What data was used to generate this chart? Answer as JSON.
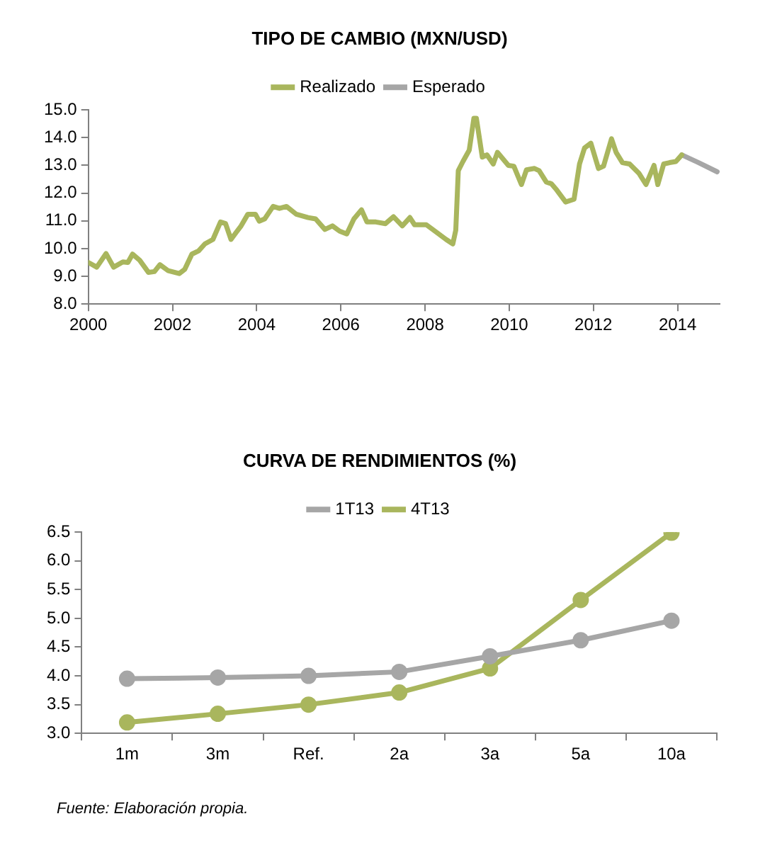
{
  "chart_data": [
    {
      "type": "line",
      "title": "TIPO DE CAMBIO (MXN/USD)",
      "legend": "top",
      "grid": false,
      "marker": "none",
      "line_style": "solid",
      "xlim": [
        2000,
        2015
      ],
      "xticks": [
        2000,
        2002,
        2004,
        2006,
        2008,
        2010,
        2012,
        2014
      ],
      "ylim": [
        8,
        15
      ],
      "yticks": [
        {
          "value": 8,
          "label": "8.0"
        },
        {
          "value": 9,
          "label": "9.0"
        },
        {
          "value": 10,
          "label": "10.0"
        },
        {
          "value": 11,
          "label": "11.0"
        },
        {
          "value": 12,
          "label": "12.0"
        },
        {
          "value": 13,
          "label": "13.0"
        },
        {
          "value": 14,
          "label": "14.0"
        },
        {
          "value": 15,
          "label": "15.0"
        }
      ],
      "series": [
        {
          "name": "Realizado",
          "color": "#a9b65d",
          "x": [
            2000.0,
            2000.2,
            2000.42,
            2000.6,
            2000.82,
            2000.94,
            2001.05,
            2001.22,
            2001.43,
            2001.57,
            2001.7,
            2001.9,
            2002.16,
            2002.29,
            2002.46,
            2002.62,
            2002.77,
            2002.96,
            2003.14,
            2003.26,
            2003.39,
            2003.51,
            2003.63,
            2003.79,
            2003.97,
            2004.06,
            2004.19,
            2004.39,
            2004.54,
            2004.71,
            2004.94,
            2005.22,
            2005.4,
            2005.62,
            2005.8,
            2005.97,
            2006.14,
            2006.31,
            2006.49,
            2006.62,
            2006.83,
            2007.06,
            2007.25,
            2007.46,
            2007.64,
            2007.75,
            2008.03,
            2008.28,
            2008.5,
            2008.66,
            2008.73,
            2008.79,
            2008.9,
            2009.05,
            2009.16,
            2009.22,
            2009.36,
            2009.47,
            2009.62,
            2009.72,
            2009.98,
            2010.11,
            2010.29,
            2010.41,
            2010.6,
            2010.71,
            2010.88,
            2011.0,
            2011.13,
            2011.34,
            2011.54,
            2011.67,
            2011.79,
            2011.94,
            2012.12,
            2012.24,
            2012.43,
            2012.54,
            2012.69,
            2012.86,
            2013.08,
            2013.25,
            2013.44,
            2013.53,
            2013.67,
            2013.81,
            2013.96,
            2014.1
          ],
          "values": [
            9.5,
            9.33,
            9.82,
            9.33,
            9.52,
            9.5,
            9.8,
            9.58,
            9.14,
            9.17,
            9.42,
            9.2,
            9.1,
            9.25,
            9.8,
            9.92,
            10.17,
            10.33,
            10.96,
            10.9,
            10.33,
            10.58,
            10.82,
            11.24,
            11.24,
            10.99,
            11.07,
            11.52,
            11.45,
            11.52,
            11.24,
            11.12,
            11.07,
            10.69,
            10.82,
            10.63,
            10.53,
            11.07,
            11.4,
            10.96,
            10.96,
            10.9,
            11.15,
            10.82,
            11.12,
            10.86,
            10.86,
            10.58,
            10.33,
            10.17,
            10.66,
            12.81,
            13.14,
            13.55,
            14.7,
            14.7,
            13.3,
            13.38,
            13.05,
            13.47,
            13.0,
            12.97,
            12.31,
            12.84,
            12.89,
            12.81,
            12.4,
            12.34,
            12.11,
            11.68,
            11.78,
            13.05,
            13.63,
            13.8,
            12.89,
            12.97,
            13.96,
            13.47,
            13.1,
            13.05,
            12.72,
            12.31,
            13.0,
            12.31,
            13.05,
            13.1,
            13.14,
            13.38
          ]
        },
        {
          "name": "Esperado",
          "color": "#a6a6a6",
          "x": [
            2014.1,
            2014.5,
            2014.94
          ],
          "values": [
            13.38,
            13.1,
            12.77
          ]
        }
      ]
    },
    {
      "type": "line",
      "title": "CURVA DE RENDIMIENTOS (%)",
      "legend": "top",
      "grid": false,
      "marker": "circle",
      "line_style": "solid",
      "categories": [
        "1m",
        "3m",
        "Ref.",
        "2a",
        "3a",
        "5a",
        "10a"
      ],
      "ylim": [
        3,
        6.5
      ],
      "yticks": [
        {
          "value": 3,
          "label": "3.0"
        },
        {
          "value": 3.5,
          "label": "3.5"
        },
        {
          "value": 4,
          "label": "4.0"
        },
        {
          "value": 4.5,
          "label": "4.5"
        },
        {
          "value": 5,
          "label": "5.0"
        },
        {
          "value": 5.5,
          "label": "5.5"
        },
        {
          "value": 6,
          "label": "6.0"
        },
        {
          "value": 6.5,
          "label": "6.5"
        }
      ],
      "annotations": [
        "Fuente: Elaboración propia."
      ],
      "series": [
        {
          "name": "1T13",
          "color": "#a6a6a6",
          "values": [
            3.95,
            3.97,
            4.0,
            4.07,
            4.34,
            4.62,
            4.96
          ]
        },
        {
          "name": "4T13",
          "color": "#a9b65d",
          "values": [
            3.19,
            3.34,
            3.5,
            3.71,
            4.13,
            5.32,
            6.49
          ]
        }
      ]
    }
  ]
}
